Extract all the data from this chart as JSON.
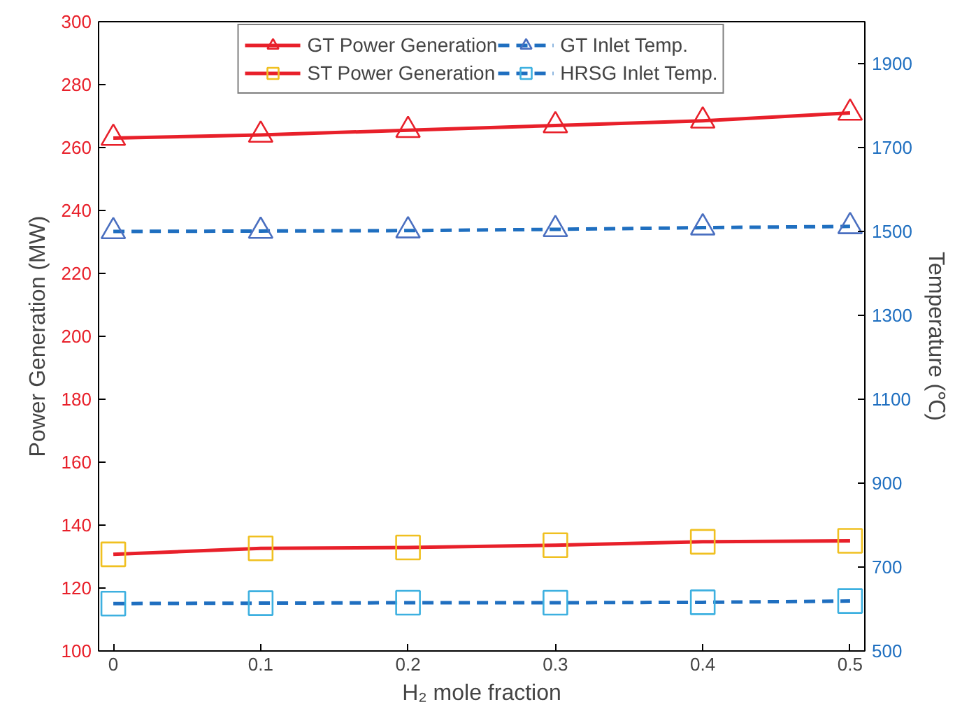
{
  "chart_data": {
    "type": "line",
    "x": [
      0,
      0.1,
      0.2,
      0.3,
      0.4,
      0.5
    ],
    "xlabel": "H₂ mole fraction",
    "ylabel": "Power Generation (MW)",
    "y2label": "Temperature (℃)",
    "xlim": [
      -0.01,
      0.51
    ],
    "xticks": [
      0,
      0.1,
      0.2,
      0.3,
      0.4,
      0.5
    ],
    "ylim": [
      100,
      300
    ],
    "yticks": [
      100,
      120,
      140,
      160,
      180,
      200,
      220,
      240,
      260,
      280,
      300
    ],
    "y2lim": [
      500,
      2000
    ],
    "y2ticks": [
      500,
      700,
      900,
      1100,
      1300,
      1500,
      1700,
      1900
    ],
    "legend": "top",
    "grid": false,
    "series": [
      {
        "name": "GT Power Generation",
        "color": "#e8202a",
        "colors": [
          "#e8202a",
          "#e8202a",
          "#e8202a",
          "#e8202a",
          "#e8202a",
          "#e8202a"
        ],
        "marker": "triangle",
        "line_style": "solid",
        "values": [
          263,
          264,
          265.5,
          267,
          268.5,
          271
        ]
      },
      {
        "name": "ST Power Generation",
        "color": "#e8202a",
        "colors": [
          "#f0c020",
          "#f0c020",
          "#f0c020",
          "#f0c020",
          "#f0c020",
          "#f0c020"
        ],
        "marker": "square",
        "line_style": "solid",
        "values": [
          130.7,
          132.6,
          132.9,
          133.6,
          134.7,
          135
        ]
      },
      {
        "name": "GT Inlet Temp.",
        "color": "#1f6fc0",
        "colors": [
          "#4a6fc0",
          "#4a6fc0",
          "#4a6fc0",
          "#4a6fc0",
          "#4a6fc0",
          "#4a6fc0"
        ],
        "marker": "triangle",
        "line_style": "dashed",
        "axis": "y2",
        "values": [
          1500,
          1501,
          1502,
          1505,
          1509,
          1512
        ]
      },
      {
        "name": "HRSG Inlet Temp.",
        "color": "#1f6fc0",
        "colors": [
          "#3db0e0",
          "#3db0e0",
          "#3db0e0",
          "#3db0e0",
          "#3db0e0",
          "#3db0e0"
        ],
        "marker": "square",
        "line_style": "dashed",
        "axis": "y2",
        "values": [
          613,
          614,
          615,
          615,
          616,
          619
        ]
      }
    ]
  }
}
